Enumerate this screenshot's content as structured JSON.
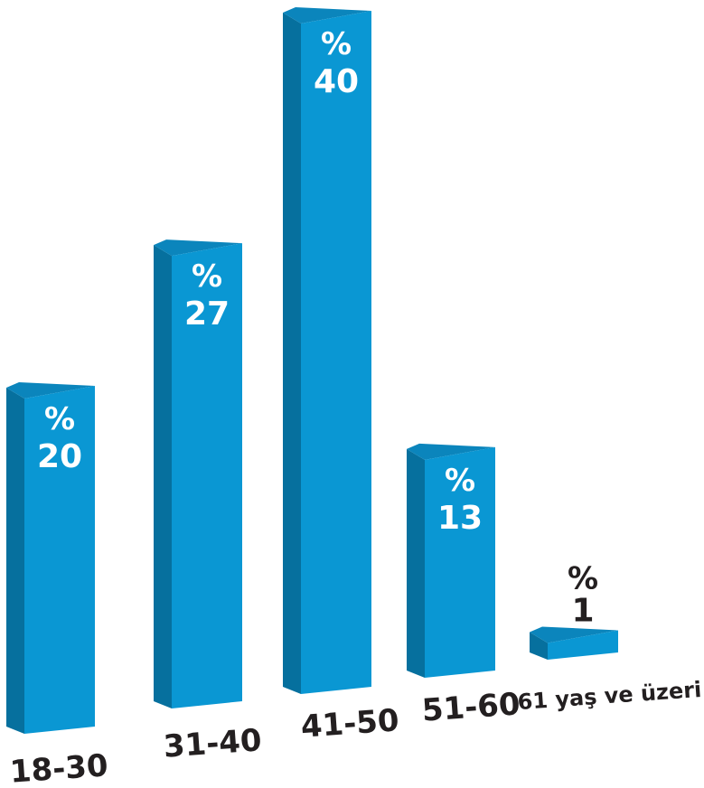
{
  "chart_data": {
    "type": "bar",
    "title": "",
    "xlabel": "",
    "ylabel": "",
    "categories": [
      "18-30",
      "31-40",
      "41-50",
      "51-60",
      "61 yaş ve üzeri"
    ],
    "values": [
      20,
      27,
      40,
      13,
      1
    ],
    "value_prefix": "%",
    "ylim": [
      0,
      40
    ],
    "grid": false,
    "legend": "none",
    "colors": {
      "bar_front": "#0a97d3",
      "bar_side": "#06709e",
      "bar_top": "#0b85bc",
      "label_inside": "#ffffff",
      "label_outside": "#231f20",
      "category_text": "#231f20"
    }
  }
}
